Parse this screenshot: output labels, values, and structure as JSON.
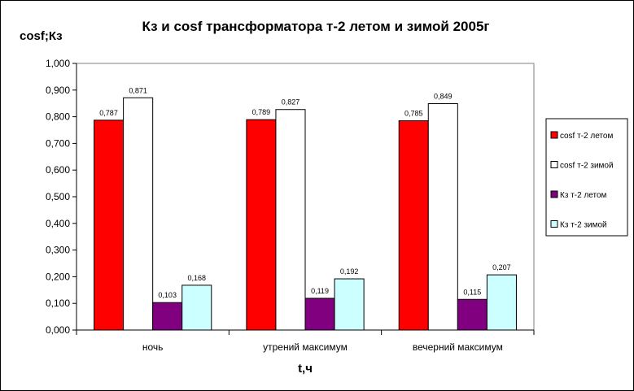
{
  "chart_data": {
    "type": "bar",
    "title": "Кз и cosf трансформатора т-2 летом и зимой 2005г",
    "ylabel": "cosf;Кз",
    "xlabel": "t,ч",
    "categories": [
      "ночь",
      "утрений максимум",
      "вечерний максимум"
    ],
    "ylim": [
      0,
      1
    ],
    "yticks": [
      "0,000",
      "0,100",
      "0,200",
      "0,300",
      "0,400",
      "0,500",
      "0,600",
      "0,700",
      "0,800",
      "0,900",
      "1,000"
    ],
    "grid": false,
    "legend_position": "right",
    "series": [
      {
        "name": "cosf т-2 летом",
        "color": "#ff0000",
        "values": [
          0.787,
          0.789,
          0.785
        ],
        "labels": [
          "0,787",
          "0,789",
          "0,785"
        ]
      },
      {
        "name": "cosf т-2 зимой",
        "color": "#ffffff",
        "values": [
          0.871,
          0.827,
          0.849
        ],
        "labels": [
          "0,871",
          "0,827",
          "0,849"
        ]
      },
      {
        "name": "Кз т-2 летом",
        "color": "#800080",
        "values": [
          0.103,
          0.119,
          0.115
        ],
        "labels": [
          "0,103",
          "0,119",
          "0,115"
        ]
      },
      {
        "name": "Кз т-2 зимой",
        "color": "#ccffff",
        "values": [
          0.168,
          0.192,
          0.207
        ],
        "labels": [
          "0,168",
          "0,192",
          "0,207"
        ]
      }
    ]
  }
}
